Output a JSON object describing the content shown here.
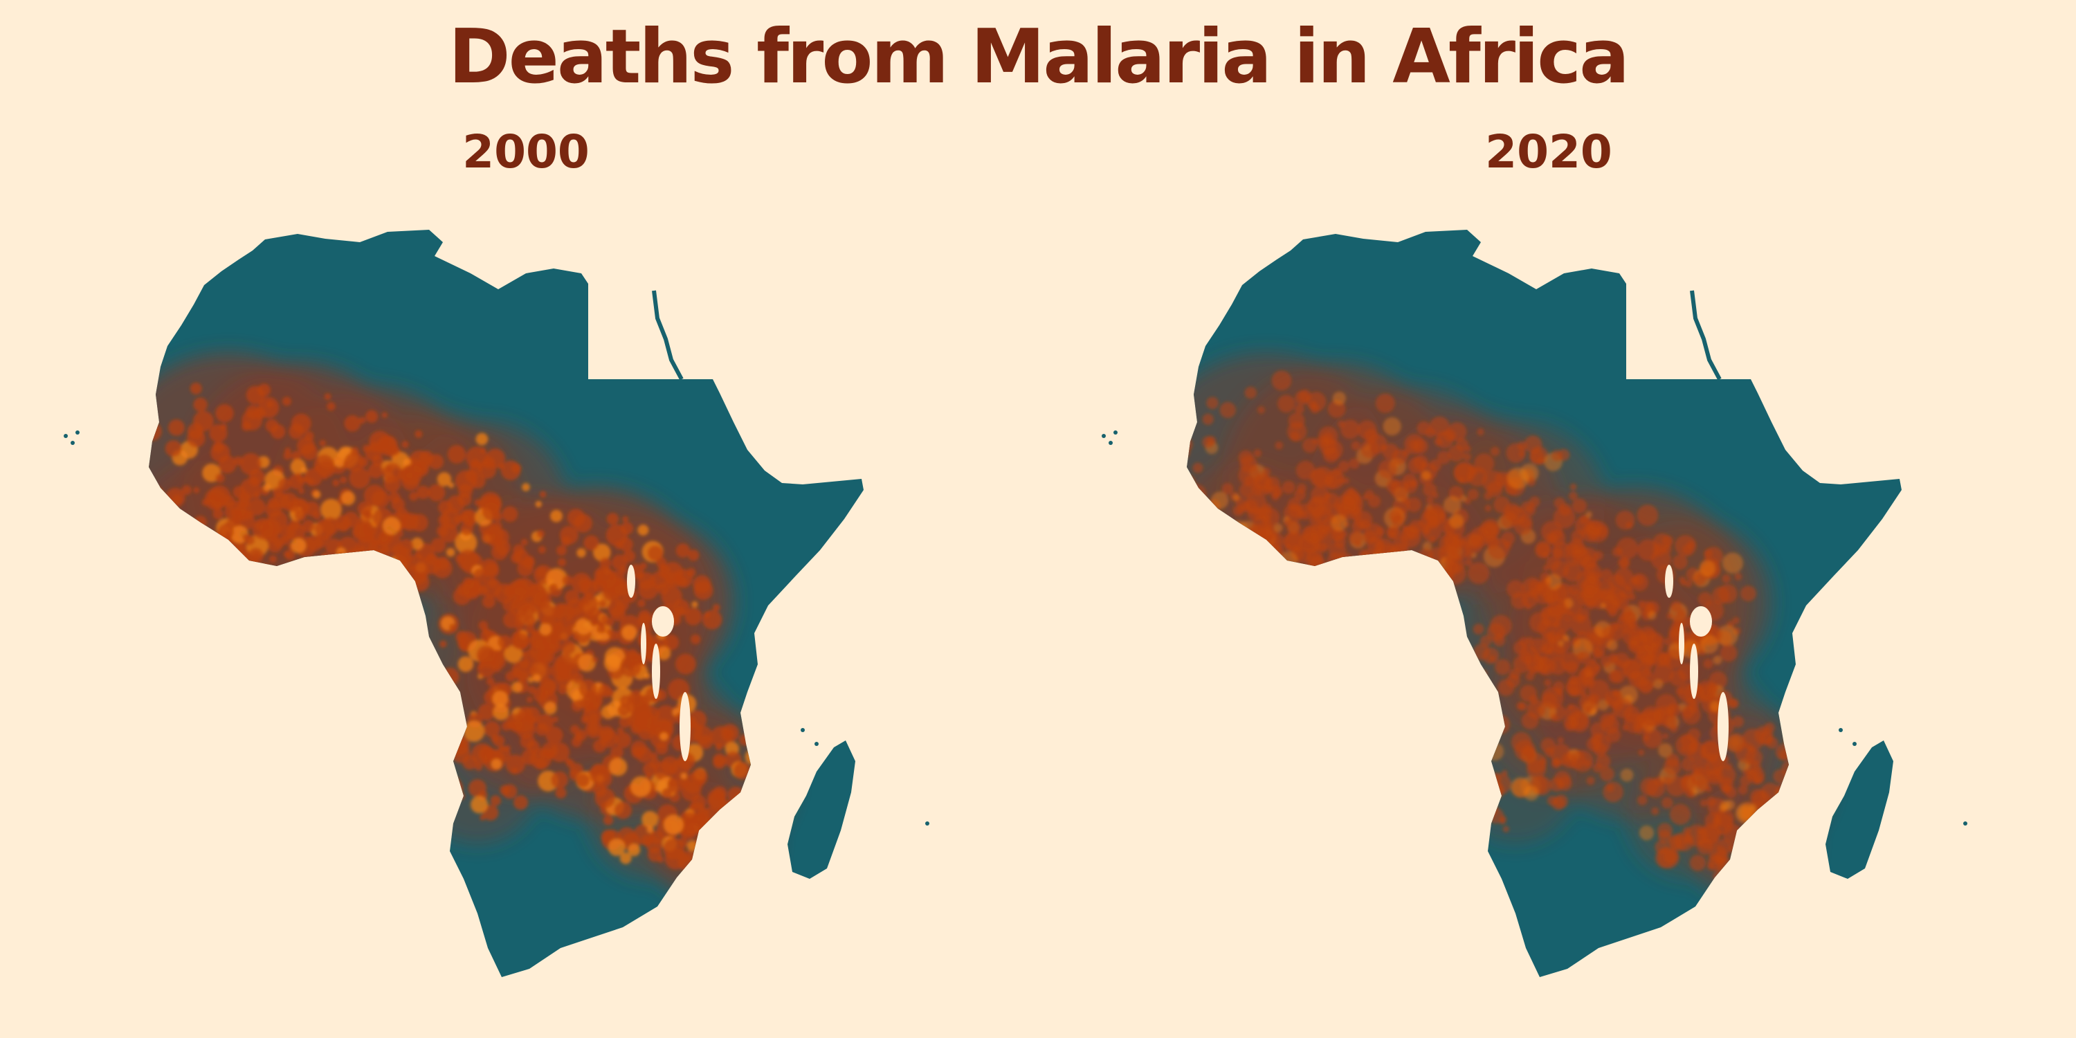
{
  "title": "Deaths from Malaria in Africa",
  "colors": {
    "background": "#ffeed6",
    "title_text": "#7a2710",
    "low_burden": "#17616d",
    "mid_burden": "#7a3e2c",
    "high_burden": "#b8420c",
    "peak_burden": "#f07f16"
  },
  "maps": [
    {
      "year": "2000",
      "intensity": 1.0
    },
    {
      "year": "2020",
      "intensity": 0.55
    }
  ]
}
